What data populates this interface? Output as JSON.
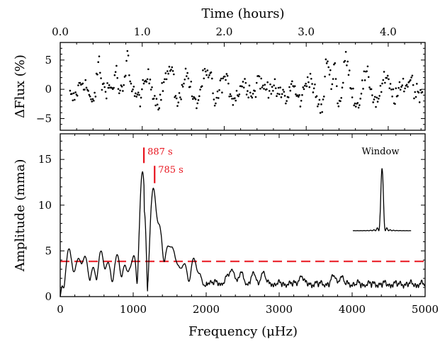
{
  "chart_data": [
    {
      "id": "lightcurve",
      "type": "scatter",
      "xlabel_top": "Time (hours)",
      "ylabel": "ΔFlux (%)",
      "xlim": [
        0.0,
        4.45
      ],
      "ylim": [
        -7,
        8
      ],
      "xticks": [
        0.0,
        1.0,
        2.0,
        3.0,
        4.0
      ],
      "xtick_labels": [
        "0.0",
        "1.0",
        "2.0",
        "3.0",
        "4.0"
      ],
      "yticks": [
        -5,
        0,
        5
      ],
      "ytick_labels": [
        "−5",
        "0",
        "5"
      ],
      "cadence_hours": 0.0111,
      "n_points": 400,
      "bursts": [
        {
          "t": 0.47,
          "flux": 6.0
        },
        {
          "t": 0.68,
          "flux": 4.8
        },
        {
          "t": 0.82,
          "flux": 5.8
        },
        {
          "t": 1.37,
          "flux": 6.4
        },
        {
          "t": 1.84,
          "flux": 3.6
        },
        {
          "t": 2.42,
          "flux": 3.5
        },
        {
          "t": 3.25,
          "flux": 4.0
        },
        {
          "t": 3.35,
          "flux": 7.0
        },
        {
          "t": 3.48,
          "flux": 4.5
        },
        {
          "t": 4.28,
          "flux": 3.0
        }
      ],
      "dips": [
        {
          "t": 0.38,
          "flux": -2.5
        },
        {
          "t": 2.77,
          "flux": -4.2
        },
        {
          "t": 3.2,
          "flux": -3.5
        }
      ]
    },
    {
      "id": "periodogram",
      "type": "line",
      "xlabel": "Frequency (μHz)",
      "ylabel": "Amplitude (mma)",
      "xlim": [
        0,
        5000
      ],
      "ylim": [
        0,
        17.8
      ],
      "xticks": [
        0,
        1000,
        2000,
        3000,
        4000,
        5000
      ],
      "xtick_labels": [
        "0",
        "1000",
        "2000",
        "3000",
        "4000",
        "5000"
      ],
      "yticks": [
        0,
        5,
        10,
        15
      ],
      "ytick_labels": [
        "0",
        "5",
        "10",
        "15"
      ],
      "threshold": 3.85,
      "peaks": [
        {
          "freq": 1127,
          "amp": 13.6,
          "label": "887 s"
        },
        {
          "freq": 1274,
          "amp": 11.7,
          "label": "785 s"
        },
        {
          "freq": 1340,
          "amp": 7.6
        },
        {
          "freq": 1390,
          "amp": 4.4
        },
        {
          "freq": 1480,
          "amp": 5.2
        },
        {
          "freq": 1545,
          "amp": 4.9
        },
        {
          "freq": 1620,
          "amp": 3.0
        },
        {
          "freq": 1700,
          "amp": 3.3
        },
        {
          "freq": 1830,
          "amp": 4.0
        },
        {
          "freq": 1900,
          "amp": 2.2
        },
        {
          "freq": 120,
          "amp": 5.1
        },
        {
          "freq": 200,
          "amp": 2.5
        },
        {
          "freq": 260,
          "amp": 3.9
        },
        {
          "freq": 340,
          "amp": 4.2
        },
        {
          "freq": 450,
          "amp": 2.6
        },
        {
          "freq": 560,
          "amp": 4.8
        },
        {
          "freq": 650,
          "amp": 3.4
        },
        {
          "freq": 780,
          "amp": 4.3
        },
        {
          "freq": 890,
          "amp": 2.9
        },
        {
          "freq": 990,
          "amp": 3.6
        },
        {
          "freq": 2300,
          "amp": 1.7
        },
        {
          "freq": 2360,
          "amp": 2.5
        },
        {
          "freq": 2480,
          "amp": 2.1
        },
        {
          "freq": 2650,
          "amp": 2.0
        },
        {
          "freq": 2780,
          "amp": 2.2
        },
        {
          "freq": 3300,
          "amp": 1.8
        },
        {
          "freq": 3750,
          "amp": 1.8
        },
        {
          "freq": 3850,
          "amp": 1.6
        }
      ],
      "annotations": [
        {
          "text": "887 s",
          "freq": 1127,
          "amp_from": 14.6,
          "amp_to": 16.3
        },
        {
          "text": "785 s",
          "freq": 1274,
          "amp_from": 12.4,
          "amp_to": 14.3
        }
      ],
      "window": {
        "label": "Window",
        "freq_center": 4410,
        "freq_halfwidth": 400,
        "amp_base": 7.2,
        "amp_peak": 14.0
      }
    }
  ]
}
